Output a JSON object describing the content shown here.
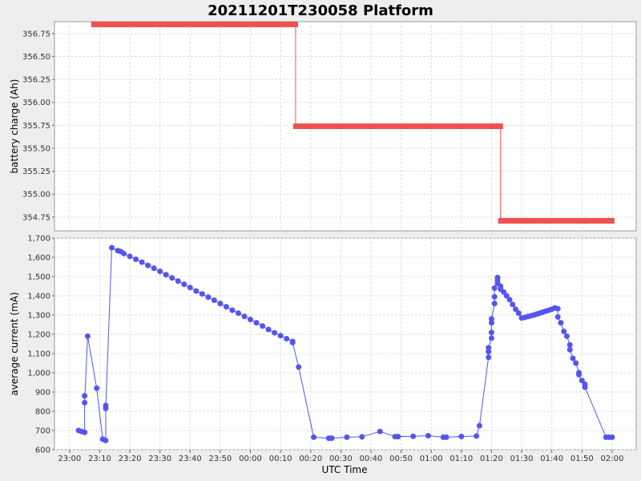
{
  "chart_data": {
    "type": "line",
    "title": "20211201T230058 Platform",
    "xlabel": "UTC Time",
    "x_ticks": [
      "23:00",
      "23:10",
      "23:20",
      "23:30",
      "23:40",
      "23:50",
      "00:00",
      "00:10",
      "00:20",
      "00:30",
      "00:40",
      "00:50",
      "01:00",
      "01:10",
      "01:20",
      "01:30",
      "01:40",
      "01:50",
      "02:00"
    ],
    "x_range_minutes": [
      -5,
      8
    ],
    "grid": true,
    "colors": {
      "battery": "#f05050",
      "current": "#5555ee"
    },
    "panels": [
      {
        "ylabel": "battery charge (Ah)",
        "ylim": [
          354.6,
          356.88
        ],
        "y_ticks": [
          "356.75",
          "356.50",
          "356.25",
          "356.00",
          "355.75",
          "355.50",
          "355.25",
          "355.00",
          "354.75"
        ],
        "series": [
          {
            "values": [
              {
                "start": "23:08",
                "end": "23:13",
                "y": 356.85
              },
              {
                "start": "23:13",
                "end": "00:15",
                "y": 356.85
              },
              {
                "start": "00:15",
                "end": "01:23",
                "y": 355.74
              },
              {
                "start": "01:23",
                "end": "01:51",
                "y": 354.71
              },
              {
                "start": "01:51",
                "end": "02:00",
                "y": 354.71
              }
            ]
          }
        ]
      },
      {
        "ylabel": "average current (mA)",
        "ylim": [
          600,
          1700
        ],
        "y_ticks": [
          "1,700",
          "1,600",
          "1,500",
          "1,400",
          "1,300",
          "1,200",
          "1,100",
          "1,000",
          "900",
          "800",
          "700",
          "600"
        ],
        "series": [
          {
            "points": [
              [
                "23:03",
                700
              ],
              [
                "23:04",
                695
              ],
              [
                "23:05",
                690
              ],
              [
                "23:05",
                880
              ],
              [
                "23:05",
                845
              ],
              [
                "23:06",
                1190
              ],
              [
                "23:09",
                920
              ],
              [
                "23:11",
                655
              ],
              [
                "23:12",
                648
              ],
              [
                "23:12",
                830
              ],
              [
                "23:12",
                815
              ],
              [
                "23:14",
                1650
              ],
              [
                "23:16",
                1635
              ],
              [
                "23:17",
                1630
              ],
              [
                "23:18",
                1620
              ],
              [
                "23:20",
                1605
              ],
              [
                "23:22",
                1590
              ],
              [
                "23:24",
                1575
              ],
              [
                "23:26",
                1558
              ],
              [
                "23:28",
                1543
              ],
              [
                "23:30",
                1527
              ],
              [
                "23:32",
                1510
              ],
              [
                "23:34",
                1493
              ],
              [
                "23:36",
                1477
              ],
              [
                "23:38",
                1460
              ],
              [
                "23:40",
                1443
              ],
              [
                "23:42",
                1425
              ],
              [
                "23:44",
                1410
              ],
              [
                "23:46",
                1393
              ],
              [
                "23:48",
                1377
              ],
              [
                "23:50",
                1360
              ],
              [
                "23:52",
                1343
              ],
              [
                "23:54",
                1325
              ],
              [
                "23:56",
                1310
              ],
              [
                "23:58",
                1293
              ],
              [
                "00:00",
                1277
              ],
              [
                "00:02",
                1260
              ],
              [
                "00:04",
                1243
              ],
              [
                "00:06",
                1225
              ],
              [
                "00:08",
                1208
              ],
              [
                "00:10",
                1193
              ],
              [
                "00:12",
                1177
              ],
              [
                "00:14",
                1163
              ],
              [
                "00:14",
                1157
              ],
              [
                "00:16",
                1030
              ],
              [
                "00:21",
                665
              ],
              [
                "00:26",
                660
              ],
              [
                "00:27",
                660
              ],
              [
                "00:32",
                665
              ],
              [
                "00:37",
                667
              ],
              [
                "00:43",
                695
              ],
              [
                "00:48",
                668
              ],
              [
                "00:49",
                668
              ],
              [
                "00:54",
                670
              ],
              [
                "00:59",
                673
              ],
              [
                "01:04",
                665
              ],
              [
                "01:05",
                665
              ],
              [
                "01:10",
                669
              ],
              [
                "01:15",
                671
              ],
              [
                "01:16",
                725
              ],
              [
                "01:19",
                1080
              ],
              [
                "01:19",
                1110
              ],
              [
                "01:19",
                1130
              ],
              [
                "01:20",
                1180
              ],
              [
                "01:20",
                1210
              ],
              [
                "01:20",
                1260
              ],
              [
                "01:20",
                1280
              ],
              [
                "01:21",
                1360
              ],
              [
                "01:21",
                1395
              ],
              [
                "01:21",
                1440
              ],
              [
                "01:22",
                1495
              ],
              [
                "01:22",
                1480
              ],
              [
                "01:22",
                1465
              ],
              [
                "01:23",
                1450
              ],
              [
                "01:23",
                1435
              ],
              [
                "01:24",
                1420
              ],
              [
                "01:25",
                1400
              ],
              [
                "01:26",
                1380
              ],
              [
                "01:27",
                1355
              ],
              [
                "01:28",
                1330
              ],
              [
                "01:29",
                1310
              ],
              [
                "01:30",
                1285
              ],
              [
                "01:31",
                1288
              ],
              [
                "01:32",
                1292
              ],
              [
                "01:33",
                1296
              ],
              [
                "01:34",
                1300
              ],
              [
                "01:35",
                1305
              ],
              [
                "01:36",
                1310
              ],
              [
                "01:37",
                1315
              ],
              [
                "01:38",
                1320
              ],
              [
                "01:39",
                1325
              ],
              [
                "01:40",
                1330
              ],
              [
                "01:41",
                1337
              ],
              [
                "01:42",
                1333
              ],
              [
                "01:42",
                1290
              ],
              [
                "01:43",
                1260
              ],
              [
                "01:44",
                1215
              ],
              [
                "01:45",
                1190
              ],
              [
                "01:46",
                1145
              ],
              [
                "01:46",
                1120
              ],
              [
                "01:47",
                1075
              ],
              [
                "01:48",
                1050
              ],
              [
                "01:49",
                1000
              ],
              [
                "01:49",
                990
              ],
              [
                "01:50",
                960
              ],
              [
                "01:51",
                940
              ],
              [
                "01:51",
                925
              ],
              [
                "01:58",
                665
              ],
              [
                "01:59",
                665
              ],
              [
                "02:00",
                665
              ]
            ]
          }
        ]
      }
    ]
  }
}
